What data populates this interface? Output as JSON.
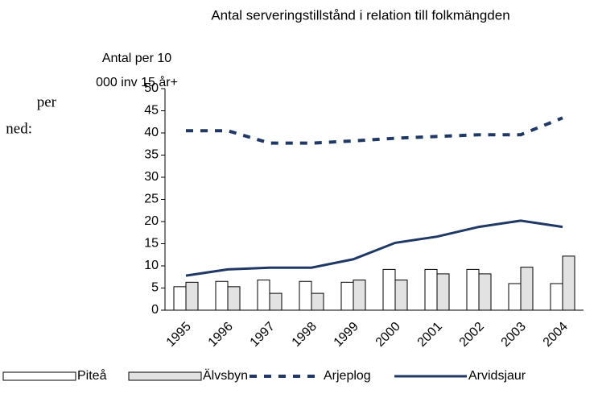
{
  "chart_data": {
    "type": "combo",
    "title": "Antal serveringstillstånd i relation till folkmängden",
    "ylabel": [
      "Antal per 10",
      "000 inv 15 år+"
    ],
    "annotations": [
      "per",
      "ned:"
    ],
    "categories": [
      "1995",
      "1996",
      "1997",
      "1998",
      "1999",
      "2000",
      "2001",
      "2002",
      "2003",
      "2004"
    ],
    "series": [
      {
        "name": "Piteå",
        "kind": "bar",
        "color": "#ffffff",
        "values": [
          5.3,
          6.5,
          6.8,
          6.5,
          6.3,
          9.2,
          9.2,
          9.2,
          6.0,
          6.0
        ]
      },
      {
        "name": "Älvsbyn",
        "kind": "bar",
        "color": "#e2e2e2",
        "values": [
          6.3,
          5.3,
          3.8,
          3.8,
          6.8,
          6.8,
          8.2,
          8.2,
          9.7,
          12.2
        ]
      },
      {
        "name": "Arjeplog",
        "kind": "line",
        "style": "dashed",
        "color": "#1f3864",
        "values": [
          40.5,
          40.5,
          37.7,
          37.7,
          38.2,
          38.8,
          39.2,
          39.6,
          39.6,
          43.4
        ]
      },
      {
        "name": "Arvidsjaur",
        "kind": "line",
        "style": "solid",
        "color": "#1f3864",
        "values": [
          7.8,
          9.2,
          9.6,
          9.6,
          11.5,
          15.2,
          16.6,
          18.8,
          20.2,
          18.8
        ]
      }
    ],
    "ylim": [
      0,
      50
    ],
    "yticks": [
      0,
      5,
      10,
      15,
      20,
      25,
      30,
      35,
      40,
      45,
      50
    ],
    "grid": false
  }
}
